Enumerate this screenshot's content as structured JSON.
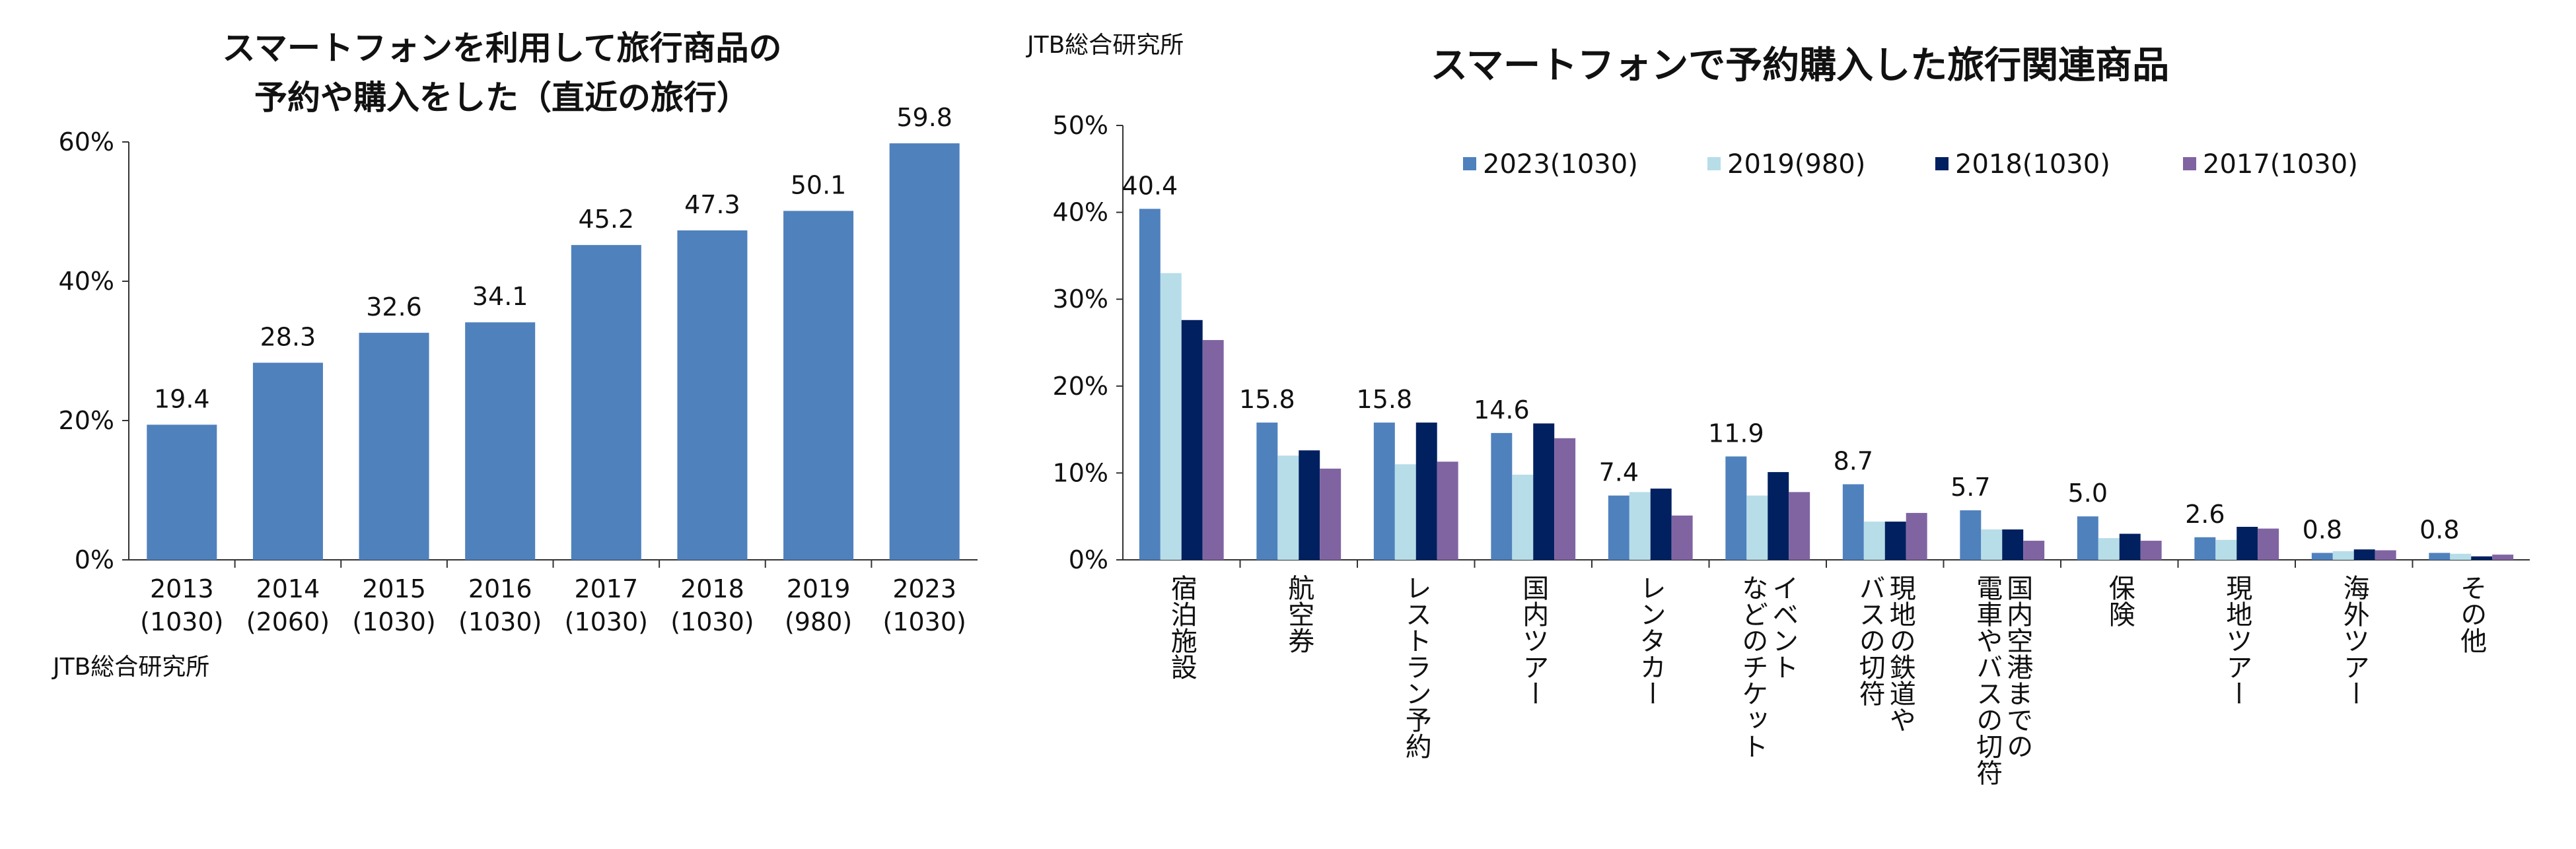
{
  "chart_data": [
    {
      "type": "bar",
      "title_lines": [
        "スマートフォンを利用して旅行商品の",
        "予約や購入をした（直近の旅行）"
      ],
      "source": "JTB総合研究所",
      "y_ticks": [
        "0%",
        "20%",
        "40%",
        "60%"
      ],
      "ylim": [
        0,
        60
      ],
      "categories": [
        {
          "year": "2013",
          "n": "(1030)"
        },
        {
          "year": "2014",
          "n": "(2060)"
        },
        {
          "year": "2015",
          "n": "(1030)"
        },
        {
          "year": "2016",
          "n": "(1030)"
        },
        {
          "year": "2017",
          "n": "(1030)"
        },
        {
          "year": "2018",
          "n": "(1030)"
        },
        {
          "year": "2019",
          "n": "(980)"
        },
        {
          "year": "2023",
          "n": "(1030)"
        }
      ],
      "values": [
        19.4,
        28.3,
        32.6,
        34.1,
        45.2,
        47.3,
        50.1,
        59.8
      ],
      "data_labels": [
        "19.4",
        "28.3",
        "32.6",
        "34.1",
        "45.2",
        "47.3",
        "50.1",
        "59.8"
      ],
      "color": "#4f81bd",
      "grid": false
    },
    {
      "type": "bar",
      "title": "スマートフォンで予約購入した旅行関連商品",
      "source": "JTB総合研究所",
      "y_ticks": [
        "0%",
        "10%",
        "20%",
        "30%",
        "40%",
        "50%"
      ],
      "ylim": [
        0,
        50
      ],
      "legend_position": "top",
      "categories": [
        [
          "宿泊施設"
        ],
        [
          "航空券"
        ],
        [
          "レストラン予約"
        ],
        [
          "国内ツアー"
        ],
        [
          "レンタカー"
        ],
        [
          "イベント",
          "などのチケット"
        ],
        [
          "現地の鉄道や",
          "バスの切符"
        ],
        [
          "国内空港までの",
          "電車やバスの切符"
        ],
        [
          "保険"
        ],
        [
          "現地ツアー"
        ],
        [
          "海外ツアー"
        ],
        [
          "その他"
        ]
      ],
      "series": [
        {
          "name": "2023(1030)",
          "color": "#4f81bd",
          "values": [
            40.4,
            15.8,
            15.8,
            14.6,
            7.4,
            11.9,
            8.7,
            5.7,
            5.0,
            2.6,
            0.8,
            0.8
          ],
          "data_labels": [
            "40.4",
            "15.8",
            "15.8",
            "14.6",
            "7.4",
            "11.9",
            "8.7",
            "5.7",
            "5.0",
            "2.6",
            "0.8",
            "0.8"
          ]
        },
        {
          "name": "2019(980)",
          "color": "#b7dde8",
          "values": [
            33.0,
            12.0,
            11.0,
            9.8,
            7.8,
            7.4,
            4.4,
            3.5,
            2.5,
            2.3,
            1.0,
            0.7
          ]
        },
        {
          "name": "2018(1030)",
          "color": "#002060",
          "values": [
            27.6,
            12.6,
            15.8,
            15.7,
            8.2,
            10.1,
            4.4,
            3.5,
            3.0,
            3.8,
            1.2,
            0.4
          ]
        },
        {
          "name": "2017(1030)",
          "color": "#8064a2",
          "values": [
            25.3,
            10.5,
            11.3,
            14.0,
            5.1,
            7.8,
            5.4,
            2.2,
            2.2,
            3.6,
            1.1,
            0.6
          ]
        }
      ],
      "grid": false
    }
  ]
}
